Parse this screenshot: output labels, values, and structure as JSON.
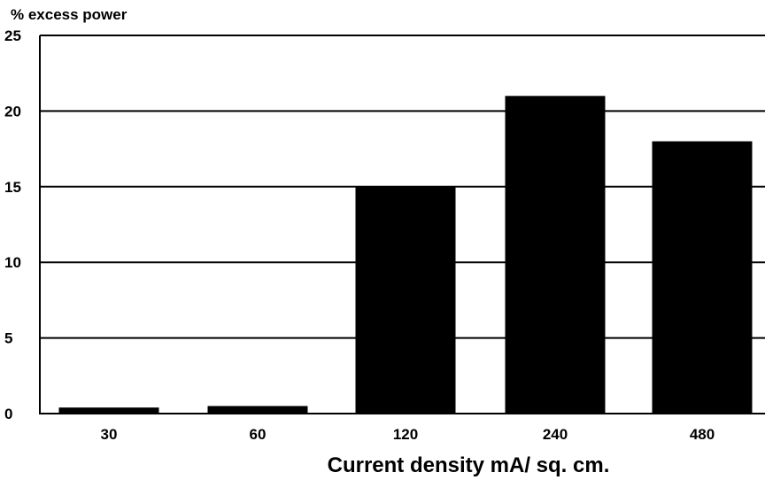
{
  "chart_data": {
    "type": "bar",
    "ylabel": "% excess power",
    "xlabel": "Current density mA/ sq. cm.",
    "categories": [
      "30",
      "60",
      "120",
      "240",
      "480"
    ],
    "values": [
      0.4,
      0.5,
      15,
      21,
      18
    ],
    "ylim": [
      0,
      25
    ],
    "yticks": [
      0,
      5,
      10,
      15,
      20,
      25
    ],
    "grid": true,
    "bar_color": "#000000"
  }
}
